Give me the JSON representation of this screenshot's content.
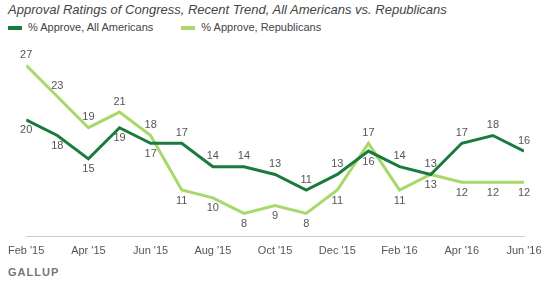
{
  "chart_data": {
    "type": "line",
    "title": "Approval Ratings of Congress, Recent Trend, All Americans vs. Republicans",
    "source": "GALLUP",
    "categories": [
      "Feb '15",
      null,
      "Apr '15",
      null,
      "Jun '15",
      null,
      "Aug '15",
      null,
      "Oct '15",
      null,
      "Dec '15",
      null,
      "Feb '16",
      null,
      "Apr '16",
      null,
      "Jun '16"
    ],
    "series": [
      {
        "name": "% Approve, All Americans",
        "color": "#1b7a3e",
        "values": [
          20,
          18,
          15,
          19,
          17,
          17,
          14,
          14,
          13,
          11,
          13,
          16,
          14,
          13,
          17,
          18,
          16
        ]
      },
      {
        "name": "% Approve, Republicans",
        "color": "#a8d86a",
        "values": [
          27,
          23,
          19,
          21,
          18,
          11,
          10,
          8,
          9,
          8,
          11,
          17,
          11,
          13,
          12,
          12,
          12
        ]
      }
    ],
    "legend": "top-left",
    "grid": false,
    "data_labels": true,
    "tick_labels": "x"
  }
}
